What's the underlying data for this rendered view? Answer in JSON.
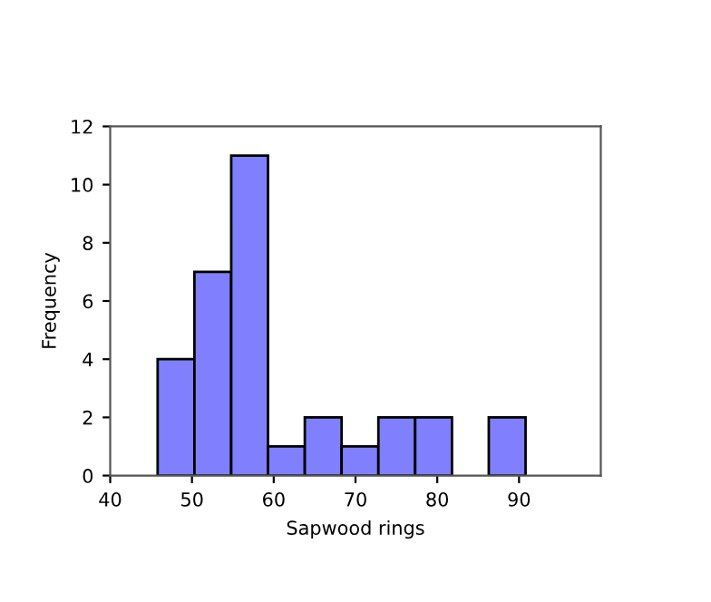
{
  "chart_data": {
    "type": "histogram",
    "xlabel": "Sapwood rings",
    "ylabel": "Frequency",
    "bins": [
      45.8,
      50.3,
      54.8,
      59.3,
      63.8,
      68.3,
      72.8,
      77.3,
      81.8,
      86.3,
      90.8
    ],
    "values": [
      4,
      7,
      11,
      1,
      2,
      1,
      2,
      2,
      0,
      2
    ],
    "color": "#8080ff",
    "xlim": [
      40,
      100
    ],
    "xticks": [
      40,
      50,
      60,
      70,
      80,
      90
    ],
    "ylim": [
      0,
      12
    ],
    "yticks": [
      0,
      2,
      4,
      6,
      8,
      10,
      12
    ],
    "grid": false
  }
}
